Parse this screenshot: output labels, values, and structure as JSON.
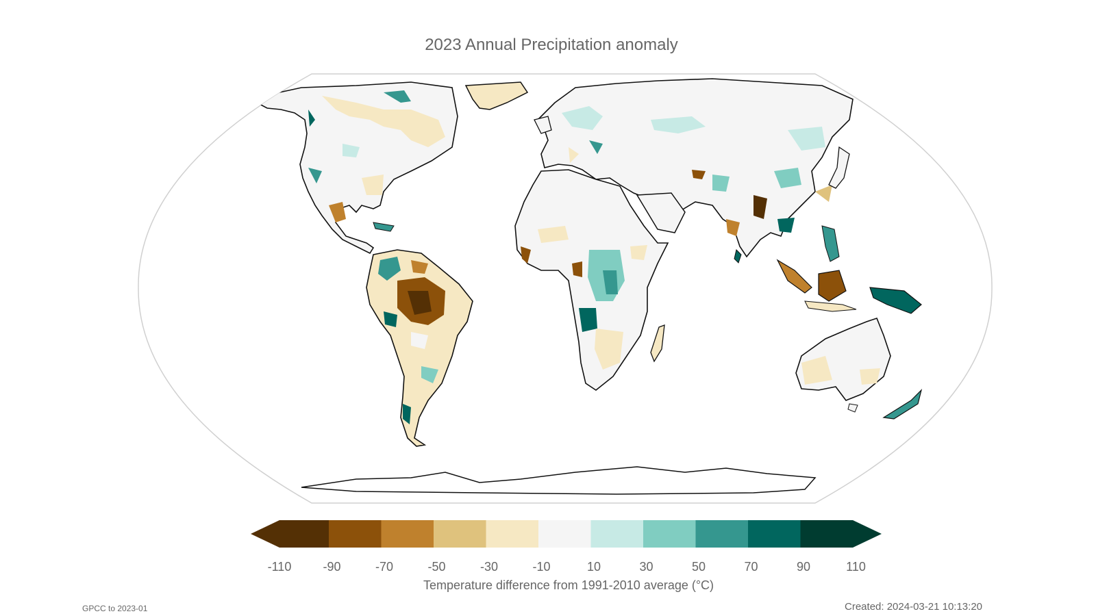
{
  "title": "2023 Annual Precipitation anomaly",
  "colorbar": {
    "ticks": [
      "-110",
      "-90",
      "-70",
      "-50",
      "-30",
      "-10",
      "10",
      "30",
      "50",
      "70",
      "90",
      "110"
    ],
    "colors": [
      "#543005",
      "#8c510a",
      "#bf812d",
      "#dfc27d",
      "#f6e8c3",
      "#f5f5f5",
      "#c7eae5",
      "#80cdc1",
      "#35978f",
      "#01665e",
      "#003c30"
    ],
    "caption": "Temperature difference from 1991-2010 average (°C)"
  },
  "source": "GPCC to 2023-01",
  "created": "Created: 2024-03-21 10:13:20"
}
